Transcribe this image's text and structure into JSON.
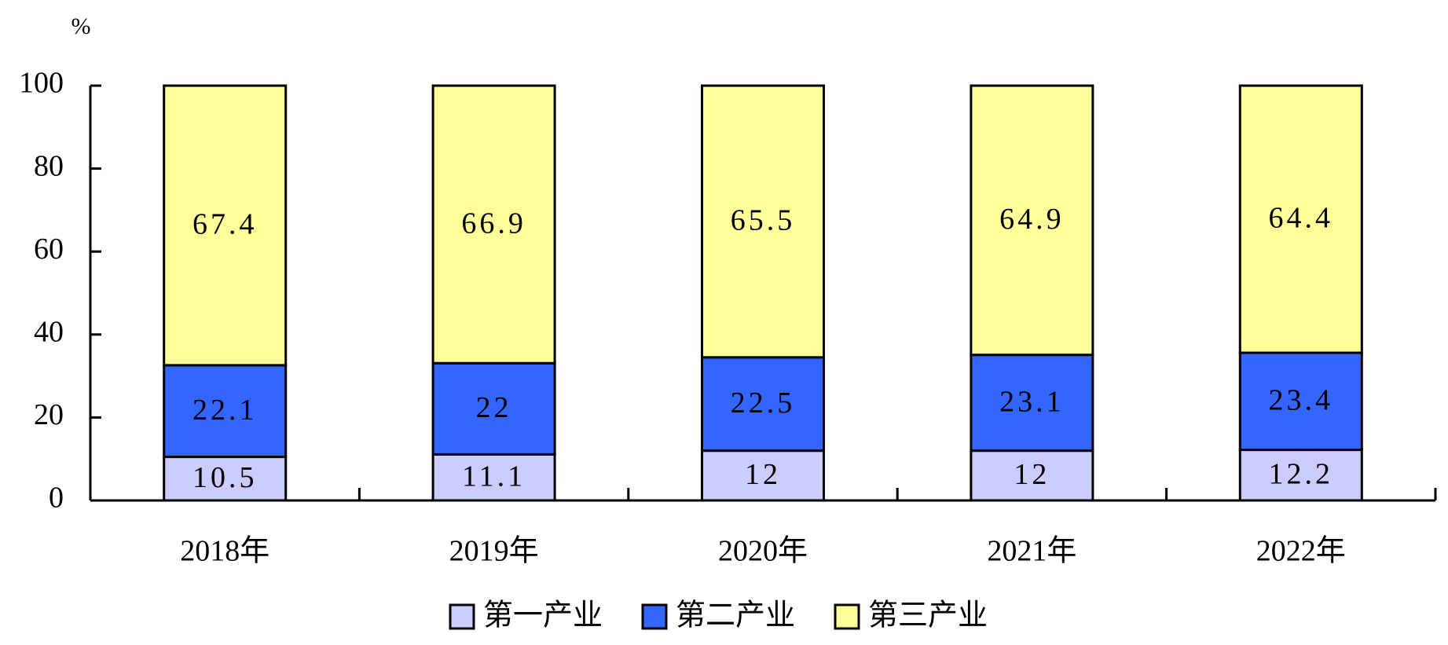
{
  "chart_data": {
    "type": "stacked_bar",
    "y_unit": "%",
    "categories": [
      "2018年",
      "2019年",
      "2020年",
      "2021年",
      "2022年"
    ],
    "series": [
      {
        "name": "第一产业",
        "color": "#ccccff",
        "values": [
          10.5,
          11.1,
          12.0,
          12.0,
          12.2
        ]
      },
      {
        "name": "第二产业",
        "color": "#3366ff",
        "values": [
          22.1,
          22.0,
          22.5,
          23.1,
          23.4
        ]
      },
      {
        "name": "第三产业",
        "color": "#ffff99",
        "values": [
          67.4,
          66.9,
          65.5,
          64.9,
          64.4
        ]
      }
    ],
    "ylim": [
      0,
      100
    ],
    "yticks": [
      0,
      20,
      40,
      60,
      80,
      100
    ],
    "grid": false,
    "legend": "bottom"
  }
}
